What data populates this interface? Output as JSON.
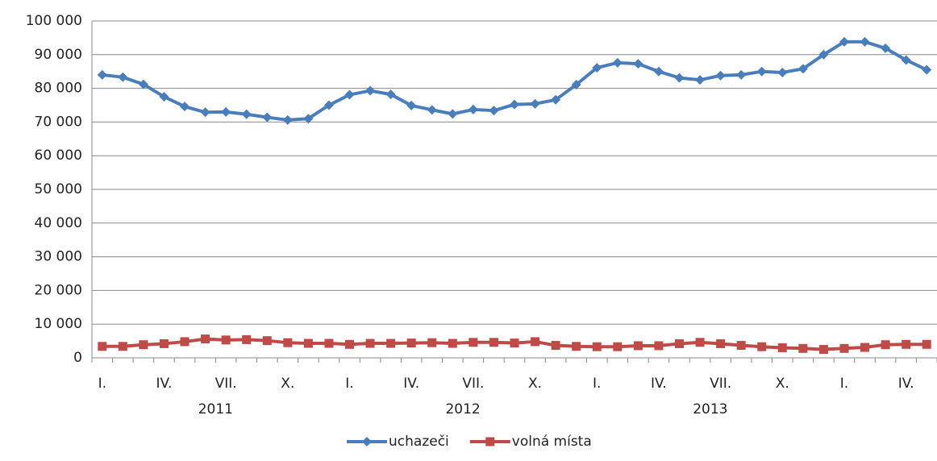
{
  "chart_data": {
    "type": "line",
    "categories": [
      "I.",
      null,
      null,
      "IV.",
      null,
      null,
      "VII.",
      null,
      null,
      "X.",
      null,
      null,
      "I.",
      null,
      null,
      "IV.",
      null,
      null,
      "VII.",
      null,
      null,
      "X.",
      null,
      null,
      "I.",
      null,
      null,
      "IV.",
      null,
      null,
      "VII.",
      null,
      null,
      "X.",
      null,
      null,
      "I.",
      null,
      null,
      "IV.",
      null
    ],
    "year_labels": [
      "2011",
      "2012",
      "2013"
    ],
    "series": [
      {
        "name": "uchazeči",
        "color": "#4a7ebb",
        "marker": "diamond",
        "values": [
          84000,
          83300,
          81200,
          77500,
          74600,
          72900,
          73000,
          72300,
          71400,
          70600,
          71000,
          75000,
          78100,
          79300,
          78200,
          74900,
          73600,
          72400,
          73700,
          73400,
          75200,
          75400,
          76600,
          81100,
          86100,
          87600,
          87300,
          85000,
          83100,
          82500,
          83800,
          84000,
          85000,
          84700,
          85800,
          90000,
          93800,
          93800,
          91900,
          88400,
          85500
        ]
      },
      {
        "name": "volná místa",
        "color": "#be4b48",
        "marker": "square",
        "values": [
          3400,
          3400,
          3900,
          4200,
          4800,
          5600,
          5300,
          5400,
          5100,
          4500,
          4300,
          4300,
          4000,
          4300,
          4300,
          4400,
          4500,
          4300,
          4600,
          4600,
          4400,
          4800,
          3700,
          3400,
          3300,
          3300,
          3600,
          3600,
          4200,
          4600,
          4200,
          3700,
          3300,
          3000,
          2800,
          2500,
          2800,
          3100,
          3900,
          4000,
          4000
        ]
      }
    ],
    "ylim": [
      0,
      100000
    ],
    "yticks": [
      0,
      {
        "value": 10000,
        "label": "10 000"
      },
      {
        "value": 20000,
        "label": "20 000"
      },
      {
        "value": 30000,
        "label": "30 000"
      },
      {
        "value": 40000,
        "label": "40 000"
      },
      {
        "value": 50000,
        "label": "50 000"
      },
      {
        "value": 60000,
        "label": "60 000"
      },
      {
        "value": 70000,
        "label": "70 000"
      },
      {
        "value": 80000,
        "label": "80 000"
      },
      {
        "value": 90000,
        "label": "90 000"
      },
      {
        "value": 100000,
        "label": "100 000"
      }
    ],
    "grid": true,
    "legend": "bottom"
  }
}
